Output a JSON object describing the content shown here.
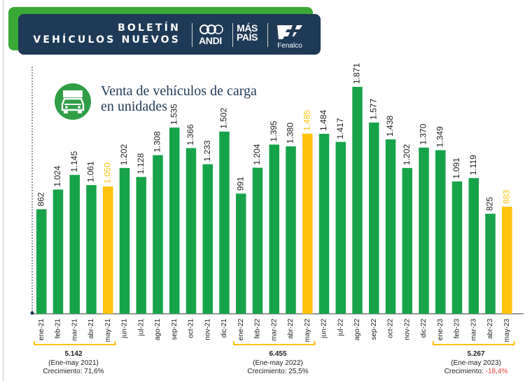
{
  "banner": {
    "line1": "BOLETÍN",
    "line2": "VEHÍCULOS NUEVOS",
    "logo_andi": "ANDI",
    "logo_maspais_1": "MÁS",
    "logo_maspais_2": "PAÍS",
    "logo_fenalco": "Fenalco",
    "colors": {
      "navy": "#1e3a56",
      "green": "#3aa935"
    }
  },
  "chart_header": {
    "icon": "truck-icon",
    "title_line1": "Venta de vehículos de carga",
    "title_line2": "en unidades"
  },
  "chart_data": {
    "type": "bar",
    "title": "Venta de vehículos de carga en unidades",
    "xlabel": "",
    "ylabel": "",
    "ylim": [
      0,
      1871
    ],
    "grid": false,
    "legend": "none",
    "categories": [
      "ene-21",
      "feb-21",
      "mar-21",
      "abr-21",
      "may-21",
      "jun-21",
      "jul-21",
      "ago-21",
      "sep-21",
      "oct-21",
      "nov-21",
      "dic-21",
      "ene-22",
      "feb-22",
      "mar-22",
      "abr-22",
      "may-22",
      "jun-22",
      "jul-22",
      "ago-22",
      "sep-22",
      "oct-22",
      "nov-22",
      "dic-22",
      "ene-23",
      "feb-23",
      "mar-23",
      "abr-23",
      "may-23"
    ],
    "values": [
      862,
      1024,
      1145,
      1061,
      1050,
      1202,
      1128,
      1308,
      1535,
      1366,
      1233,
      1502,
      991,
      1204,
      1395,
      1380,
      1485,
      1484,
      1417,
      1871,
      1577,
      1438,
      1202,
      1370,
      1349,
      1091,
      1119,
      825,
      883
    ],
    "value_labels": [
      "862",
      "1.024",
      "1.145",
      "1.061",
      "1.050",
      "1.202",
      "1.128",
      "1.308",
      "1.535",
      "1.366",
      "1.233",
      "1.502",
      "991",
      "1.204",
      "1.395",
      "1.380",
      "1.485",
      "1.484",
      "1.417",
      "1.871",
      "1.577",
      "1.438",
      "1.202",
      "1.370",
      "1.349",
      "1.091",
      "1.119",
      "825",
      "883"
    ],
    "highlighted": [
      "may-21",
      "may-22",
      "may-23"
    ],
    "colors": {
      "bar": "#17a34a",
      "highlight": "#ffc20e"
    }
  },
  "summaries": [
    {
      "total": "5.142",
      "period": "(Ene-may 2021)",
      "growth_label": "Crecimiento:",
      "growth_value": "71,6%",
      "negative": false
    },
    {
      "total": "6.455",
      "period": "(Ene-may 2022)",
      "growth_label": "Crecimiento:",
      "growth_value": "25,5%",
      "negative": false
    },
    {
      "total": "5.267",
      "period": "(Ene-may 2023)",
      "growth_label": "Crecimiento:",
      "growth_value": "-18,4%",
      "negative": true
    }
  ]
}
